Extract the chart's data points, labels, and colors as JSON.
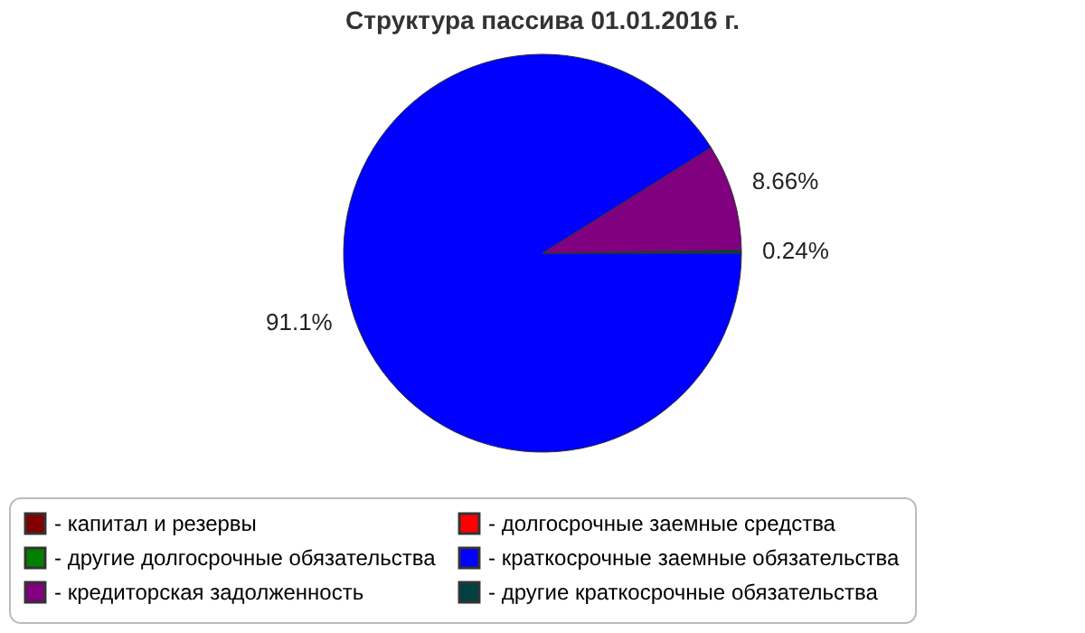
{
  "chart_data": {
    "type": "pie",
    "title": "Структура пассива 01.01.2016 г.",
    "categories": [
      "- капитал и резервы",
      "- долгосрочные заемные средства",
      "- другие долгосрочные обязательства",
      "- краткосрочные заемные обязательства",
      "- кредиторская задолженность",
      "- другие краткосрочные обязательства"
    ],
    "values": [
      0,
      0,
      0,
      91.1,
      8.66,
      0.24
    ],
    "value_labels": [
      null,
      null,
      null,
      "91.1%",
      "8.66%",
      "0.24%"
    ],
    "colors": [
      "#800000",
      "#ff0000",
      "#008000",
      "#0000ff",
      "#800080",
      "#004040"
    ],
    "legend": "bottom"
  }
}
